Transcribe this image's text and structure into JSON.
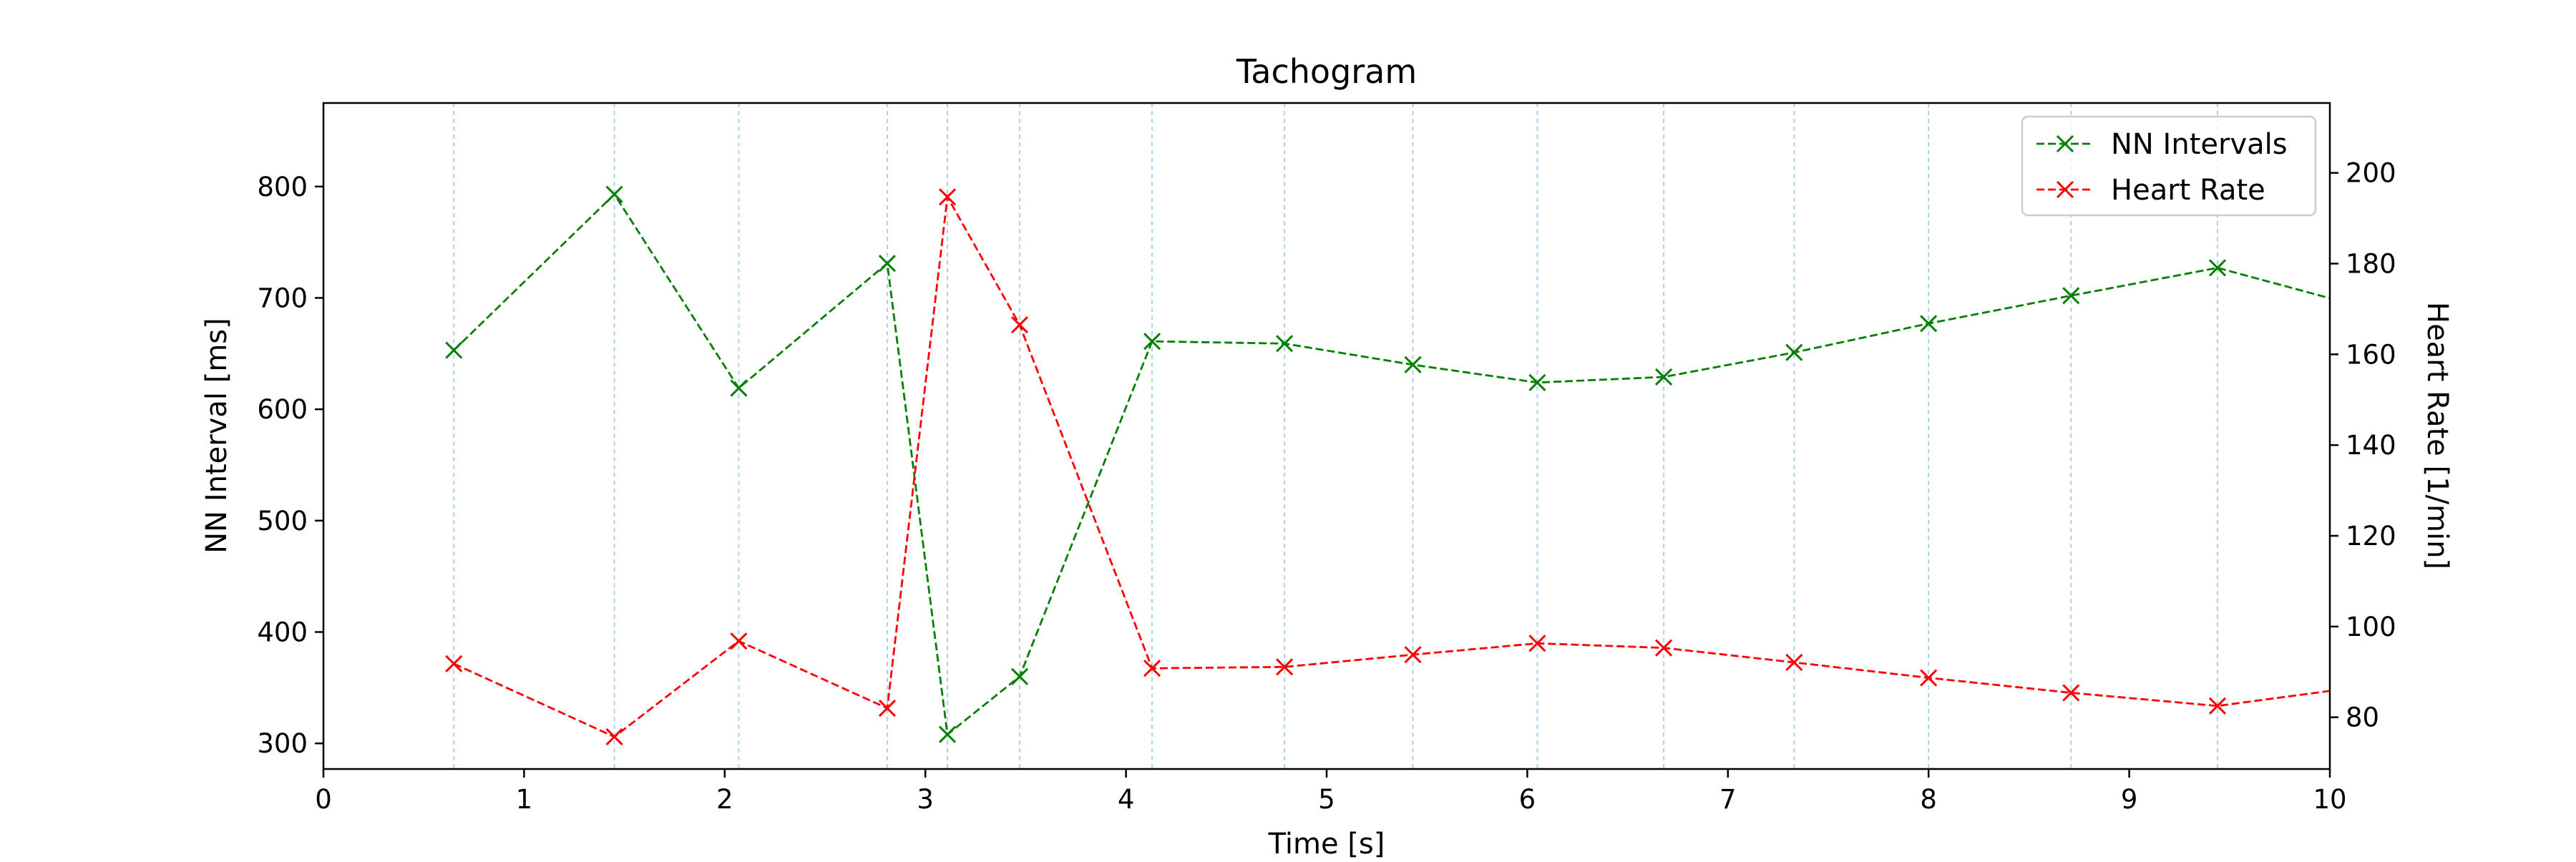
{
  "chart_data": {
    "type": "line",
    "title": "Tachogram",
    "xlabel": "Time [s]",
    "ylabel_left": "NN Interval [ms]",
    "ylabel_right": "Heart Rate [1/min]",
    "xlim": [
      0,
      10
    ],
    "ylim_left": [
      277,
      875
    ],
    "ylim_right": [
      68.6,
      215.4
    ],
    "x_ticks": [
      0,
      1,
      2,
      3,
      4,
      5,
      6,
      7,
      8,
      9,
      10
    ],
    "y_ticks_left": [
      300,
      400,
      500,
      600,
      700,
      800
    ],
    "y_ticks_right": [
      80,
      100,
      120,
      140,
      160,
      180,
      200
    ],
    "x_tick_labels": [
      "0",
      "1",
      "2",
      "3",
      "4",
      "5",
      "6",
      "7",
      "8",
      "9",
      "10"
    ],
    "y_tick_labels_left": [
      "300",
      "400",
      "500",
      "600",
      "700",
      "800"
    ],
    "y_tick_labels_right": [
      "80",
      "100",
      "120",
      "140",
      "160",
      "180",
      "200"
    ],
    "vertical_gridlines_x": [
      0.65,
      1.45,
      2.07,
      2.81,
      3.11,
      3.47,
      4.13,
      4.79,
      5.43,
      6.05,
      6.68,
      7.33,
      8.0,
      8.71,
      9.44
    ],
    "legend_position": "upper-right",
    "series": [
      {
        "name": "NN Intervals",
        "axis": "left",
        "color": "#008000",
        "line_style": "dashed",
        "marker": "x",
        "x": [
          0.65,
          1.45,
          2.07,
          2.81,
          3.11,
          3.47,
          4.13,
          4.79,
          5.43,
          6.05,
          6.68,
          7.33,
          8.0,
          8.71,
          9.44,
          10.2
        ],
        "values": [
          653,
          793,
          619,
          731,
          308,
          360,
          661,
          659,
          640,
          624,
          629,
          651,
          677,
          702,
          727,
          690
        ]
      },
      {
        "name": "Heart Rate",
        "axis": "right",
        "color": "#ff0000",
        "line_style": "dashed",
        "marker": "x",
        "x": [
          0.65,
          1.45,
          2.07,
          2.81,
          3.11,
          3.47,
          4.13,
          4.79,
          5.43,
          6.05,
          6.68,
          7.33,
          8.0,
          8.71,
          9.44,
          10.2
        ],
        "values": [
          91.8,
          75.7,
          96.8,
          82.0,
          194.7,
          166.5,
          90.8,
          91.1,
          93.8,
          96.3,
          95.3,
          92.1,
          88.7,
          85.4,
          82.5,
          87.0
        ]
      }
    ]
  }
}
